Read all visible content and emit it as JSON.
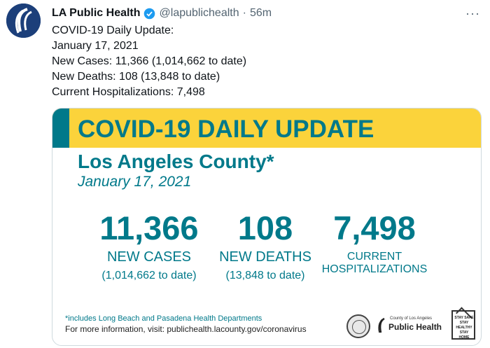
{
  "tweet": {
    "author_name": "LA Public Health",
    "handle": "@lapublichealth",
    "separator": "·",
    "time": "56m",
    "more_glyph": "···",
    "verified_icon": "verified-badge-icon",
    "text_lines": [
      "COVID-19 Daily Update:",
      "January 17, 2021",
      "New Cases: 11,366 (1,014,662 to date)",
      "New Deaths: 108 (13,848 to date)",
      "Current Hospitalizations: 7,498"
    ]
  },
  "card": {
    "title": "COVID-19 DAILY UPDATE",
    "county": "Los Angeles County*",
    "date": "January 17, 2021",
    "stats": [
      {
        "value": "11,366",
        "label": "NEW CASES",
        "sub": "(1,014,662 to date)"
      },
      {
        "value": "108",
        "label": "NEW DEATHS",
        "sub": "(13,848 to date)"
      },
      {
        "value": "7,498",
        "label_line1": "CURRENT",
        "label_line2": "HOSPITALIZATIONS"
      }
    ],
    "footnote": "*includes Long Beach and Pasadena Health Departments",
    "more_info": "For more information, visit: publichealth.lacounty.gov/coronavirus",
    "logo_small": "County of Los Angeles",
    "logo_big": "Public Health",
    "stay_text": "STAY SAFE STAY HEALTHY STAY HOME"
  },
  "colors": {
    "teal": "#00798a",
    "yellow": "#fbd33b",
    "avatar_bg": "#1c3f7a",
    "verified": "#1d9bf0"
  }
}
